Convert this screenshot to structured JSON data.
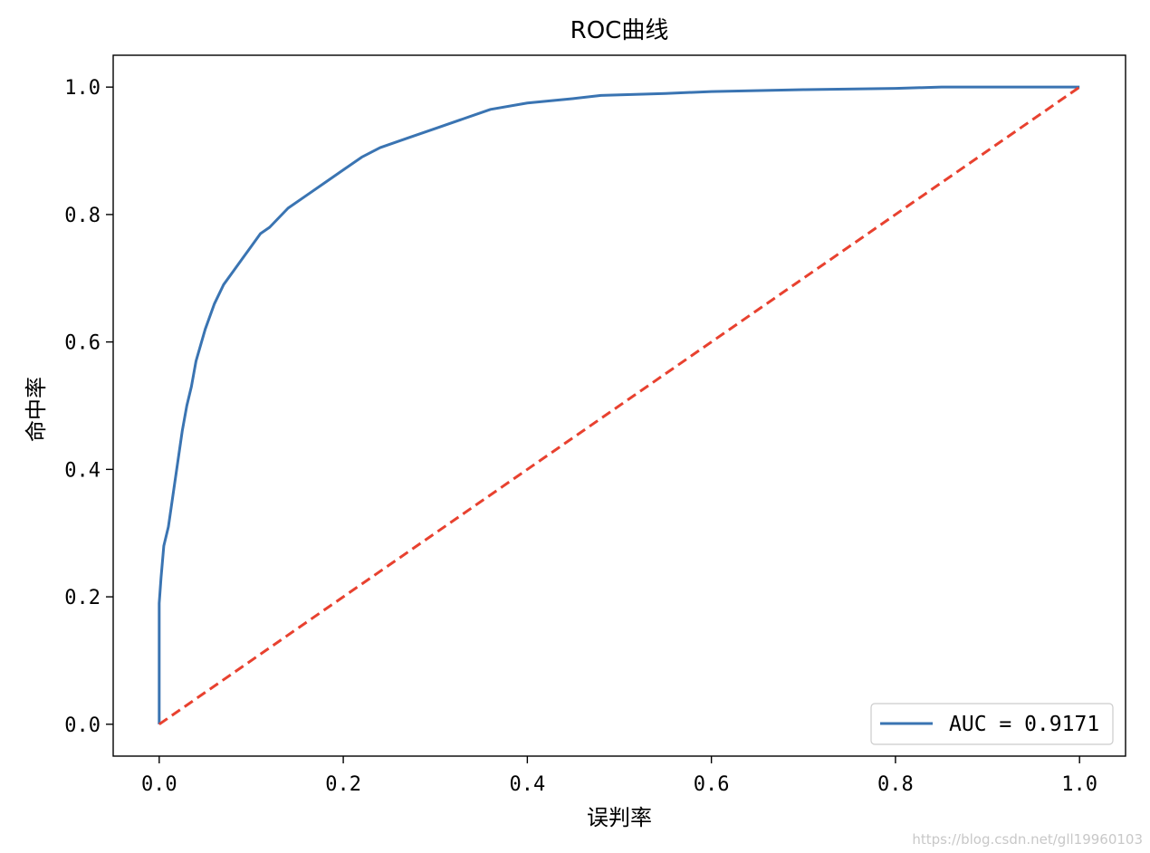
{
  "chart_data": {
    "type": "line",
    "title": "ROC曲线",
    "xlabel": "误判率",
    "ylabel": "命中率",
    "xlim": [
      -0.05,
      1.05
    ],
    "ylim": [
      -0.05,
      1.05
    ],
    "xticks": [
      "0.0",
      "0.2",
      "0.4",
      "0.6",
      "0.8",
      "1.0"
    ],
    "yticks": [
      "0.0",
      "0.2",
      "0.4",
      "0.6",
      "0.8",
      "1.0"
    ],
    "xtick_values": [
      0,
      0.2,
      0.4,
      0.6,
      0.8,
      1.0
    ],
    "ytick_values": [
      0,
      0.2,
      0.4,
      0.6,
      0.8,
      1.0
    ],
    "grid": false,
    "legend_placement": "lower-right",
    "series": [
      {
        "name": "AUC = 0.9171",
        "color": "#3a74b2",
        "style": "solid",
        "x": [
          0,
          0,
          0.002,
          0.005,
          0.01,
          0.015,
          0.02,
          0.025,
          0.03,
          0.035,
          0.04,
          0.05,
          0.06,
          0.07,
          0.08,
          0.09,
          0.1,
          0.11,
          0.12,
          0.14,
          0.16,
          0.18,
          0.2,
          0.22,
          0.24,
          0.27,
          0.3,
          0.33,
          0.36,
          0.4,
          0.45,
          0.48,
          0.55,
          0.6,
          0.7,
          0.8,
          0.85,
          0.9,
          1.0
        ],
        "y": [
          0,
          0.19,
          0.23,
          0.28,
          0.31,
          0.36,
          0.41,
          0.46,
          0.5,
          0.53,
          0.57,
          0.62,
          0.66,
          0.69,
          0.71,
          0.73,
          0.75,
          0.77,
          0.78,
          0.81,
          0.83,
          0.85,
          0.87,
          0.89,
          0.905,
          0.92,
          0.935,
          0.95,
          0.965,
          0.975,
          0.982,
          0.987,
          0.99,
          0.993,
          0.996,
          0.998,
          1.0,
          1.0,
          1.0
        ]
      },
      {
        "name": "",
        "color": "#e8412f",
        "style": "dashed",
        "x": [
          0,
          1
        ],
        "y": [
          0,
          1
        ]
      }
    ]
  },
  "watermark": "https://blog.csdn.net/gll19960103"
}
